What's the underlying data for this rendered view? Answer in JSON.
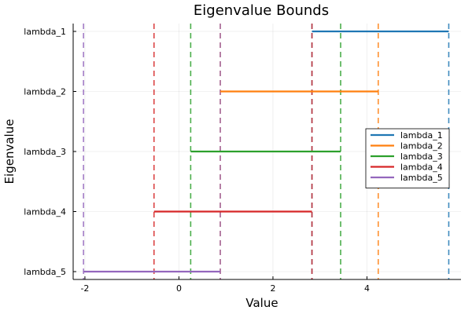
{
  "chart_data": {
    "type": "line",
    "title": "Eigenvalue Bounds",
    "xlabel": "Value",
    "ylabel": "Eigenvalue",
    "xlim": [
      -2.25,
      6.0
    ],
    "x_ticks": [
      -2,
      0,
      2,
      4
    ],
    "categories": [
      "lambda_1",
      "lambda_2",
      "lambda_3",
      "lambda_4",
      "lambda_5"
    ],
    "grid": true,
    "legend_position": "right",
    "series": [
      {
        "name": "lambda_1",
        "color": "#1f77b4",
        "lower": 2.83,
        "upper": 5.74
      },
      {
        "name": "lambda_2",
        "color": "#ff7f0e",
        "lower": 0.88,
        "upper": 4.24
      },
      {
        "name": "lambda_3",
        "color": "#2ca02c",
        "lower": 0.25,
        "upper": 3.44
      },
      {
        "name": "lambda_4",
        "color": "#d62728",
        "lower": -0.53,
        "upper": 2.83
      },
      {
        "name": "lambda_5",
        "color": "#9467bd",
        "lower": -2.03,
        "upper": 0.88
      }
    ]
  }
}
